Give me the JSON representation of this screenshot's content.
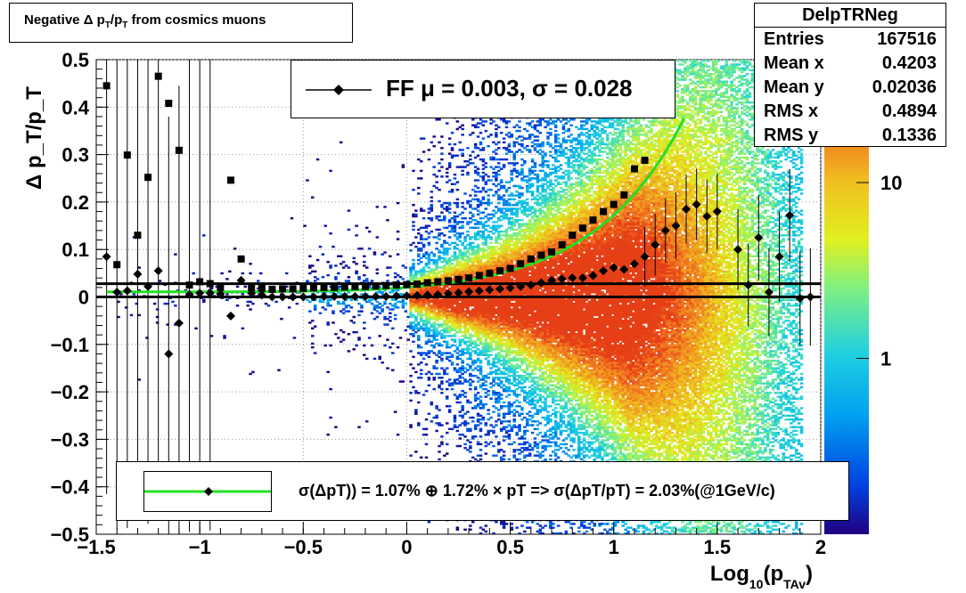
{
  "title": "Negative Δ p_T/p_T from cosmics muons",
  "title_parts": [
    "Negative Δ p",
    "T",
    "/p",
    "T",
    " from cosmics muons"
  ],
  "stats": {
    "name": "DelpTRNeg",
    "rows": [
      {
        "label": "Entries",
        "value": "167516"
      },
      {
        "label": "Mean x",
        "value": "0.4203"
      },
      {
        "label": "Mean y",
        "value": "0.02036"
      },
      {
        "label": "RMS x",
        "value": "0.4894"
      },
      {
        "label": "RMS y",
        "value": "0.1336"
      }
    ]
  },
  "ff_legend": "FF μ =  0.003, σ =   0.028",
  "fit_legend": "σ(ΔpT)) =  1.07% ⊕  1.72% × pT => σ(ΔpT/pT) =  2.03%(@1GeV/c)",
  "colors": {
    "fit_curve": "#22e022",
    "markers": "#000000",
    "palette": [
      "#200080",
      "#0040e0",
      "#00b0f0",
      "#40e0c0",
      "#c0f040",
      "#f0e020",
      "#f08020",
      "#e02010"
    ]
  },
  "chart_data": {
    "type": "heatmap",
    "xlabel": "Log_10(p_TAv)",
    "xlabel_parts": [
      "Log",
      "10",
      "(p",
      "TAv",
      ")"
    ],
    "ylabel": "Δ p_T/p_T",
    "xlim": [
      -1.5,
      2
    ],
    "ylim": [
      -0.5,
      0.5
    ],
    "x_ticks": [
      "−1.5",
      "−1",
      "−0.5",
      "0",
      "0.5",
      "1",
      "1.5",
      "2"
    ],
    "x_tick_values": [
      -1.5,
      -1,
      -0.5,
      0,
      0.5,
      1,
      1.5,
      2
    ],
    "y_ticks": [
      "0.5",
      "0.4",
      "0.3",
      "0.2",
      "0.1",
      "0",
      "−0.1",
      "−0.2",
      "−0.3",
      "−0.4",
      "−0.5"
    ],
    "y_tick_values": [
      0.5,
      0.4,
      0.3,
      0.2,
      0.1,
      0,
      -0.1,
      -0.2,
      -0.3,
      -0.4,
      -0.5
    ],
    "z_scale": "log",
    "z_ticks": [
      "10",
      "1"
    ],
    "z_tick_values": [
      10,
      1
    ],
    "zlim": [
      0.1,
      50
    ],
    "grid": true,
    "horizontal_lines": [
      0.0,
      0.028
    ],
    "series": [
      {
        "name": "sigma",
        "marker": "square",
        "x": [
          -1.45,
          -1.4,
          -1.35,
          -1.3,
          -1.25,
          -1.2,
          -1.15,
          -1.1,
          -1.05,
          -1.0,
          -0.95,
          -0.9,
          -0.85,
          -0.8,
          -0.75,
          -0.7,
          -0.65,
          -0.6,
          -0.55,
          -0.5,
          -0.45,
          -0.4,
          -0.35,
          -0.3,
          -0.25,
          -0.2,
          -0.15,
          -0.1,
          -0.05,
          0.0,
          0.05,
          0.1,
          0.15,
          0.2,
          0.25,
          0.3,
          0.35,
          0.4,
          0.45,
          0.5,
          0.55,
          0.6,
          0.65,
          0.7,
          0.75,
          0.8,
          0.85,
          0.9,
          0.95,
          1.0,
          1.05,
          1.1,
          1.15
        ],
        "y": [
          0.445,
          0.068,
          0.299,
          0.13,
          0.252,
          0.465,
          0.408,
          0.309,
          0.025,
          0.032,
          0.028,
          0.02,
          0.246,
          0.08,
          0.02,
          0.018,
          0.016,
          0.017,
          0.017,
          0.018,
          0.019,
          0.02,
          0.02,
          0.021,
          0.022,
          0.022,
          0.023,
          0.024,
          0.025,
          0.026,
          0.027,
          0.03,
          0.032,
          0.034,
          0.037,
          0.04,
          0.045,
          0.05,
          0.055,
          0.06,
          0.07,
          0.08,
          0.088,
          0.095,
          0.11,
          0.13,
          0.145,
          0.162,
          0.18,
          0.195,
          0.215,
          0.27,
          0.288
        ]
      },
      {
        "name": "mean",
        "marker": "diamond",
        "x": [
          -1.45,
          -1.4,
          -1.35,
          -1.3,
          -1.25,
          -1.2,
          -1.15,
          -1.1,
          -1.05,
          -1.0,
          -0.95,
          -0.9,
          -0.85,
          -0.8,
          -0.75,
          -0.7,
          -0.65,
          -0.6,
          -0.55,
          -0.5,
          -0.45,
          -0.4,
          -0.35,
          -0.3,
          -0.25,
          -0.2,
          -0.15,
          -0.1,
          -0.05,
          0.0,
          0.05,
          0.1,
          0.15,
          0.2,
          0.25,
          0.3,
          0.35,
          0.4,
          0.45,
          0.5,
          0.55,
          0.6,
          0.65,
          0.7,
          0.75,
          0.8,
          0.85,
          0.9,
          0.95,
          1.0,
          1.05,
          1.1,
          1.15,
          1.2,
          1.25,
          1.3,
          1.35,
          1.4,
          1.45,
          1.5,
          1.6,
          1.65,
          1.7,
          1.75,
          1.8,
          1.85,
          1.9,
          1.95
        ],
        "y": [
          0.085,
          0.01,
          0.013,
          0.048,
          0.022,
          0.055,
          -0.12,
          -0.055,
          0.005,
          0.008,
          0.008,
          0.006,
          -0.04,
          0.035,
          0.008,
          0.004,
          0.0,
          0.0,
          0.0,
          0.0,
          0.0,
          0.001,
          0.001,
          0.001,
          0.001,
          0.001,
          0.001,
          0.001,
          0.002,
          0.002,
          0.003,
          0.004,
          0.005,
          0.007,
          0.009,
          0.011,
          0.013,
          0.015,
          0.017,
          0.019,
          0.022,
          0.025,
          0.03,
          0.035,
          0.038,
          0.04,
          0.04,
          0.045,
          0.055,
          0.062,
          0.058,
          0.07,
          0.085,
          0.11,
          0.14,
          0.15,
          0.185,
          0.195,
          0.17,
          0.18,
          0.1,
          0.025,
          0.125,
          0.01,
          0.085,
          0.172,
          -0.003,
          0.0
        ]
      }
    ],
    "fit": {
      "name": "FF",
      "a_percent": 1.07,
      "b_percent": 1.72
    }
  }
}
